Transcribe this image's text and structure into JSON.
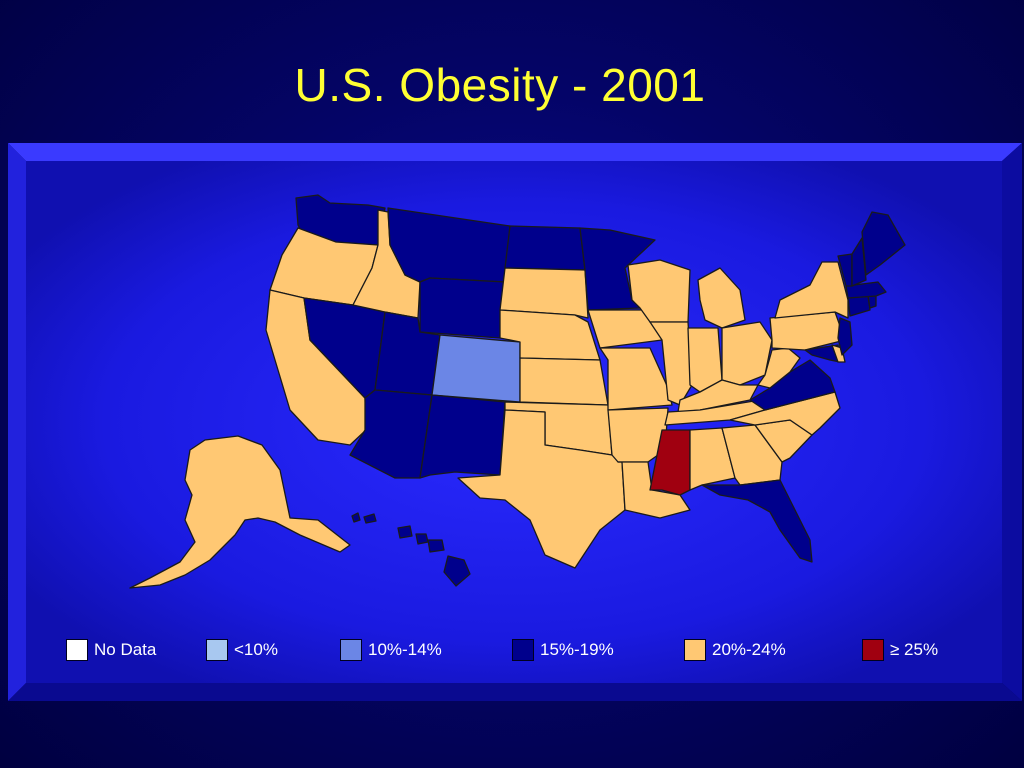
{
  "title": "U.S. Obesity - 2001",
  "colors": {
    "no_data": "#ffffff",
    "lt10": "#a8c8f0",
    "p10_14": "#6b86e6",
    "p15_19": "#00008c",
    "p20_24": "#ffc873",
    "ge25": "#a00010",
    "title": "#ffff33",
    "panel": "#1a1ae6"
  },
  "legend": [
    {
      "label": "No Data",
      "color_key": "no_data"
    },
    {
      "label": "<10%",
      "color_key": "lt10"
    },
    {
      "label": "10%-14%",
      "color_key": "p10_14"
    },
    {
      "label": "15%-19%",
      "color_key": "p15_19"
    },
    {
      "label": "20%-24%",
      "color_key": "p20_24"
    },
    {
      "label": "≥ 25%",
      "color_key": "ge25"
    }
  ],
  "states": {
    "WA": "p15_19",
    "OR": "p20_24",
    "CA": "p20_24",
    "NV": "p15_19",
    "ID": "p20_24",
    "MT": "p15_19",
    "WY": "p15_19",
    "UT": "p15_19",
    "AZ": "p15_19",
    "CO": "p10_14",
    "NM": "p15_19",
    "ND": "p15_19",
    "SD": "p20_24",
    "NE": "p20_24",
    "KS": "p20_24",
    "OK": "p20_24",
    "TX": "p20_24",
    "MN": "p15_19",
    "IA": "p20_24",
    "MO": "p20_24",
    "AR": "p20_24",
    "LA": "p20_24",
    "WI": "p20_24",
    "IL": "p20_24",
    "MS": "ge25",
    "MI": "p20_24",
    "IN": "p20_24",
    "KY": "p20_24",
    "TN": "p20_24",
    "AL": "p20_24",
    "OH": "p20_24",
    "GA": "p20_24",
    "FL": "p15_19",
    "SC": "p20_24",
    "NC": "p20_24",
    "VA": "p15_19",
    "WV": "p20_24",
    "PA": "p20_24",
    "NY": "p20_24",
    "VT": "p15_19",
    "NH": "p15_19",
    "ME": "p15_19",
    "MA": "p15_19",
    "CT": "p15_19",
    "RI": "p15_19",
    "NJ": "p15_19",
    "DE": "p20_24",
    "MD": "p15_19",
    "AK": "p20_24",
    "HI": "p15_19"
  }
}
